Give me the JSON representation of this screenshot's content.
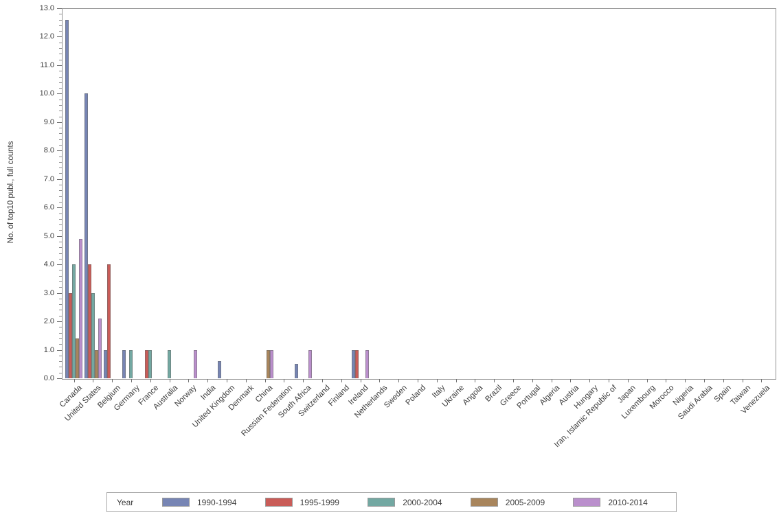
{
  "y_axis": {
    "label": "No. of top10 publ., full counts",
    "min": 0,
    "max": 13,
    "major_step": 1,
    "minor_step": 0.2,
    "tick_labels": [
      "0.0",
      "1.0",
      "2.0",
      "3.0",
      "4.0",
      "5.0",
      "6.0",
      "7.0",
      "8.0",
      "9.0",
      "10.0",
      "11.0",
      "12.0",
      "13.0"
    ]
  },
  "legend": {
    "title": "Year",
    "position": "bottom"
  },
  "chart_data": {
    "type": "bar",
    "title": "",
    "xlabel": "",
    "ylabel": "No. of top10 publ., full counts",
    "ylim": [
      0,
      13
    ],
    "grid": false,
    "legend_position": "bottom",
    "legend_title": "Year",
    "categories": [
      "Canada",
      "United States",
      "Belgium",
      "Germany",
      "France",
      "Australia",
      "Norway",
      "India",
      "United Kingdom",
      "Denmark",
      "China",
      "Russian Federation",
      "South Africa",
      "Switzerland",
      "Finland",
      "Ireland",
      "Netherlands",
      "Sweden",
      "Poland",
      "Italy",
      "Ukraine",
      "Angola",
      "Brazil",
      "Greece",
      "Portugal",
      "Algeria",
      "Austria",
      "Hungary",
      "Iran, Islamic Republic of",
      "Japan",
      "Luxembourg",
      "Morocco",
      "Nigeria",
      "Saudi Arabia",
      "Spain",
      "Taiwan",
      "Venezuela"
    ],
    "series": [
      {
        "name": "1990-1994",
        "color": "#7785B4",
        "values": [
          12.6,
          10,
          1,
          1,
          0,
          0,
          0,
          0,
          0.6,
          0,
          0,
          0,
          0.5,
          0,
          0,
          1,
          0,
          0,
          0,
          0,
          0,
          0,
          0,
          0,
          0,
          0,
          0,
          0,
          0,
          0,
          0,
          0,
          0,
          0,
          0,
          0,
          0
        ]
      },
      {
        "name": "1995-1999",
        "color": "#C95C58",
        "values": [
          3,
          4,
          4,
          0,
          1,
          0,
          0,
          0,
          0,
          0,
          0,
          0,
          0,
          0,
          0,
          1,
          0,
          0,
          0,
          0,
          0,
          0,
          0,
          0,
          0,
          0,
          0,
          0,
          0,
          0,
          0,
          0,
          0,
          0,
          0,
          0,
          0
        ]
      },
      {
        "name": "2000-2004",
        "color": "#73A8A2",
        "values": [
          4,
          3,
          0,
          1,
          1,
          1,
          0,
          0,
          0,
          0,
          0,
          0,
          0,
          0,
          0,
          0,
          0,
          0,
          0,
          0,
          0,
          0,
          0,
          0,
          0,
          0,
          0,
          0,
          0,
          0,
          0,
          0,
          0,
          0,
          0,
          0,
          0
        ]
      },
      {
        "name": "2005-2009",
        "color": "#A8855C",
        "values": [
          1.4,
          1,
          0,
          0,
          0,
          0,
          0,
          0,
          0,
          0,
          1,
          0,
          0,
          0,
          0,
          0,
          0,
          0,
          0,
          0,
          0,
          0,
          0,
          0,
          0,
          0,
          0,
          0,
          0,
          0,
          0,
          0,
          0,
          0,
          0,
          0,
          0
        ]
      },
      {
        "name": "2010-2014",
        "color": "#BA8FCC",
        "values": [
          4.9,
          2.1,
          0,
          0,
          0,
          0,
          1,
          0,
          0,
          0,
          1,
          0,
          1,
          0,
          0,
          1,
          0,
          0,
          0,
          0,
          0,
          0,
          0,
          0,
          0,
          0,
          0,
          0,
          0,
          0,
          0,
          0,
          0,
          0,
          0,
          0,
          0
        ]
      }
    ]
  }
}
